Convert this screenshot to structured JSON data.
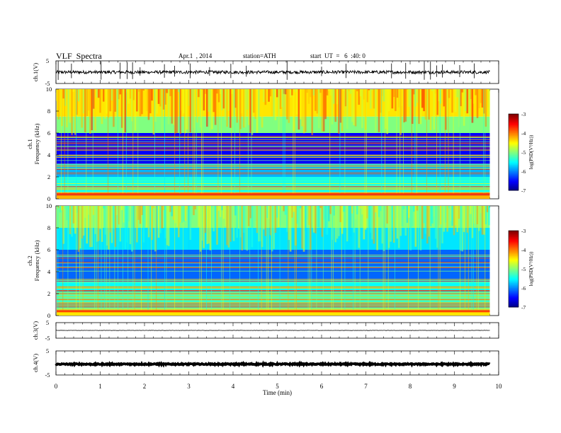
{
  "header": {
    "title": "VLF  Spectra",
    "date": "Apr.1  , 2014",
    "station": "station=ATH",
    "start": "start  UT  =   6  :40: 0"
  },
  "chart_data": [
    {
      "type": "line",
      "panel": "ch1-waveform",
      "ylabel": "ch.1(V)",
      "ylim": [
        -5,
        5
      ],
      "yticks": [
        "5",
        "-5"
      ],
      "xlim": [
        0,
        10
      ],
      "data_extent_min": [
        0,
        9.8
      ],
      "baseline": 0,
      "noise_amplitude": 0.7,
      "spike_times": [
        0.05,
        0.35,
        1.02,
        1.45,
        1.61,
        1.73,
        1.9,
        2.45,
        2.68,
        3.03,
        3.47,
        3.95,
        4.3,
        5.22,
        6.0,
        6.55,
        7.58,
        7.9,
        8.32,
        8.46,
        8.6,
        8.73,
        9.12,
        9.45
      ]
    },
    {
      "type": "heatmap",
      "panel": "ch1-spectrogram",
      "ylabel": "ch.1\nFrequency  (kHz)",
      "ylim": [
        0,
        10
      ],
      "yticks": [
        "0",
        "2",
        "4",
        "6",
        "8",
        "10"
      ],
      "xlim": [
        0,
        10
      ],
      "data_extent_min": [
        0,
        9.8
      ],
      "colorbar": {
        "label": "log(PSD(V²/Hz))",
        "range": [
          -7,
          -3
        ],
        "ticks": [
          "-3",
          "-4",
          "-5",
          "-6",
          "-7"
        ]
      },
      "bands_khz": [
        [
          0,
          0.6,
          -4.2
        ],
        [
          0.6,
          2.0,
          -5.4
        ],
        [
          2.0,
          3.2,
          -5.8
        ],
        [
          3.2,
          6.0,
          -6.5
        ],
        [
          6.0,
          7.5,
          -5.0
        ],
        [
          7.5,
          10,
          -4.4
        ]
      ],
      "step_changes_min": [
        3.1,
        8.5
      ]
    },
    {
      "type": "heatmap",
      "panel": "ch2-spectrogram",
      "ylabel": "ch.2\nFrequency  (kHz)",
      "ylim": [
        0,
        10
      ],
      "yticks": [
        "0",
        "2",
        "4",
        "6",
        "8",
        "10"
      ],
      "xlim": [
        0,
        10
      ],
      "data_extent_min": [
        0,
        9.8
      ],
      "colorbar": {
        "label": "log(PSD(V²/Hz))",
        "range": [
          -7,
          -3
        ],
        "ticks": [
          "-3",
          "-4",
          "-5",
          "-6",
          "-7"
        ]
      },
      "bands_khz": [
        [
          0,
          0.6,
          -4.4
        ],
        [
          0.6,
          2.0,
          -5.2
        ],
        [
          2.0,
          3.2,
          -5.5
        ],
        [
          3.2,
          6.0,
          -6.1
        ],
        [
          6.0,
          8.0,
          -5.6
        ],
        [
          8.0,
          10,
          -5.0
        ]
      ],
      "step_changes_min": [
        3.1,
        8.5
      ]
    },
    {
      "type": "line",
      "panel": "ch3-waveform",
      "ylabel": "ch.3(V)",
      "ylim": [
        -5,
        5
      ],
      "yticks": [
        "5",
        "-5"
      ],
      "xlim": [
        0,
        10
      ],
      "data_extent_min": [
        0,
        9.8
      ],
      "baseline": 0,
      "noise_amplitude": 0.1
    },
    {
      "type": "line",
      "panel": "ch4-waveform",
      "ylabel": "ch.4(V)",
      "ylim": [
        -5,
        5
      ],
      "yticks": [
        "5",
        "-5"
      ],
      "xlim": [
        0,
        10
      ],
      "data_extent_min": [
        0,
        9.8
      ],
      "baseline": -0.5,
      "noise_amplitude": 0.25
    }
  ],
  "xaxis": {
    "label": "Time  (min)",
    "ticks": [
      "0",
      "1",
      "2",
      "3",
      "4",
      "5",
      "6",
      "7",
      "8",
      "9",
      "10"
    ]
  }
}
